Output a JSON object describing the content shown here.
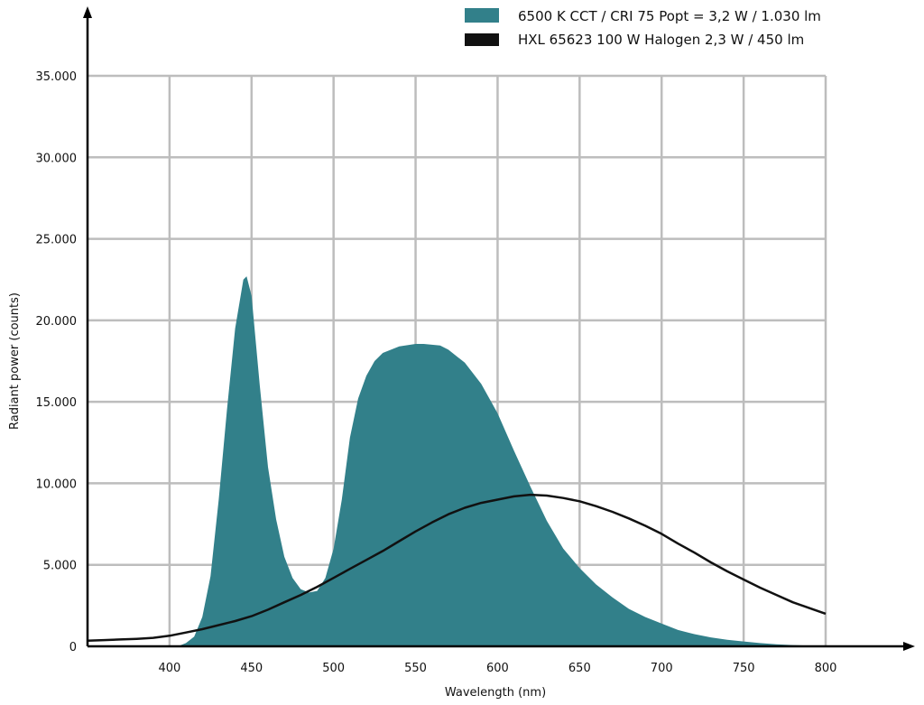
{
  "chart_data": {
    "type": "area",
    "xlabel": "Wavelength (nm)",
    "ylabel": "Radiant power (counts)",
    "xlim": [
      350,
      800
    ],
    "ylim": [
      0,
      35000
    ],
    "x_ticks": [
      400,
      450,
      500,
      550,
      600,
      650,
      700,
      750,
      800
    ],
    "x_tick_labels": [
      "400",
      "450",
      "500",
      "550",
      "600",
      "650",
      "700",
      "750",
      "800"
    ],
    "y_ticks": [
      0,
      5000,
      10000,
      15000,
      20000,
      25000,
      30000,
      35000
    ],
    "y_tick_labels": [
      "0",
      "5.000",
      "10.000",
      "15.000",
      "20.000",
      "25.000",
      "30.000",
      "35.000"
    ],
    "grid": true,
    "legend_position": "top-right",
    "series": [
      {
        "name": "6500 K CCT / CRI 75 Popt = 3,2 W / 1.030 lm",
        "type": "area",
        "color": "#32808a",
        "x": [
          405,
          410,
          415,
          420,
          425,
          430,
          435,
          440,
          445,
          447,
          450,
          455,
          460,
          465,
          470,
          475,
          480,
          485,
          490,
          495,
          500,
          505,
          510,
          515,
          520,
          525,
          530,
          540,
          550,
          555,
          560,
          565,
          570,
          580,
          590,
          600,
          610,
          620,
          630,
          640,
          650,
          660,
          670,
          680,
          690,
          700,
          710,
          720,
          730,
          740,
          750,
          760,
          770,
          780,
          790,
          800
        ],
        "y": [
          0,
          200,
          600,
          1800,
          4300,
          9000,
          14500,
          19500,
          22500,
          22700,
          21500,
          16000,
          11000,
          7800,
          5500,
          4200,
          3500,
          3300,
          3400,
          4200,
          6000,
          9000,
          12800,
          15200,
          16600,
          17500,
          18000,
          18400,
          18550,
          18550,
          18500,
          18450,
          18200,
          17400,
          16100,
          14300,
          12000,
          9800,
          7700,
          6000,
          4800,
          3800,
          3000,
          2300,
          1800,
          1400,
          1000,
          750,
          550,
          400,
          300,
          200,
          120,
          80,
          40,
          0
        ]
      },
      {
        "name": "HXL 65623 100 W Halogen 2,3 W / 450 lm",
        "type": "line",
        "color": "#111111",
        "x": [
          350,
          360,
          370,
          380,
          390,
          400,
          410,
          420,
          430,
          440,
          450,
          460,
          470,
          480,
          490,
          500,
          510,
          520,
          530,
          540,
          550,
          560,
          570,
          580,
          590,
          600,
          610,
          620,
          630,
          640,
          650,
          660,
          670,
          680,
          690,
          700,
          710,
          720,
          730,
          740,
          750,
          760,
          770,
          780,
          790,
          800
        ],
        "y": [
          350,
          380,
          420,
          460,
          520,
          650,
          850,
          1050,
          1300,
          1550,
          1850,
          2250,
          2700,
          3150,
          3650,
          4200,
          4750,
          5300,
          5850,
          6450,
          7050,
          7600,
          8100,
          8500,
          8800,
          9000,
          9200,
          9300,
          9250,
          9100,
          8900,
          8600,
          8250,
          7850,
          7400,
          6900,
          6300,
          5750,
          5150,
          4600,
          4100,
          3600,
          3150,
          2700,
          2350,
          2000
        ]
      }
    ]
  }
}
